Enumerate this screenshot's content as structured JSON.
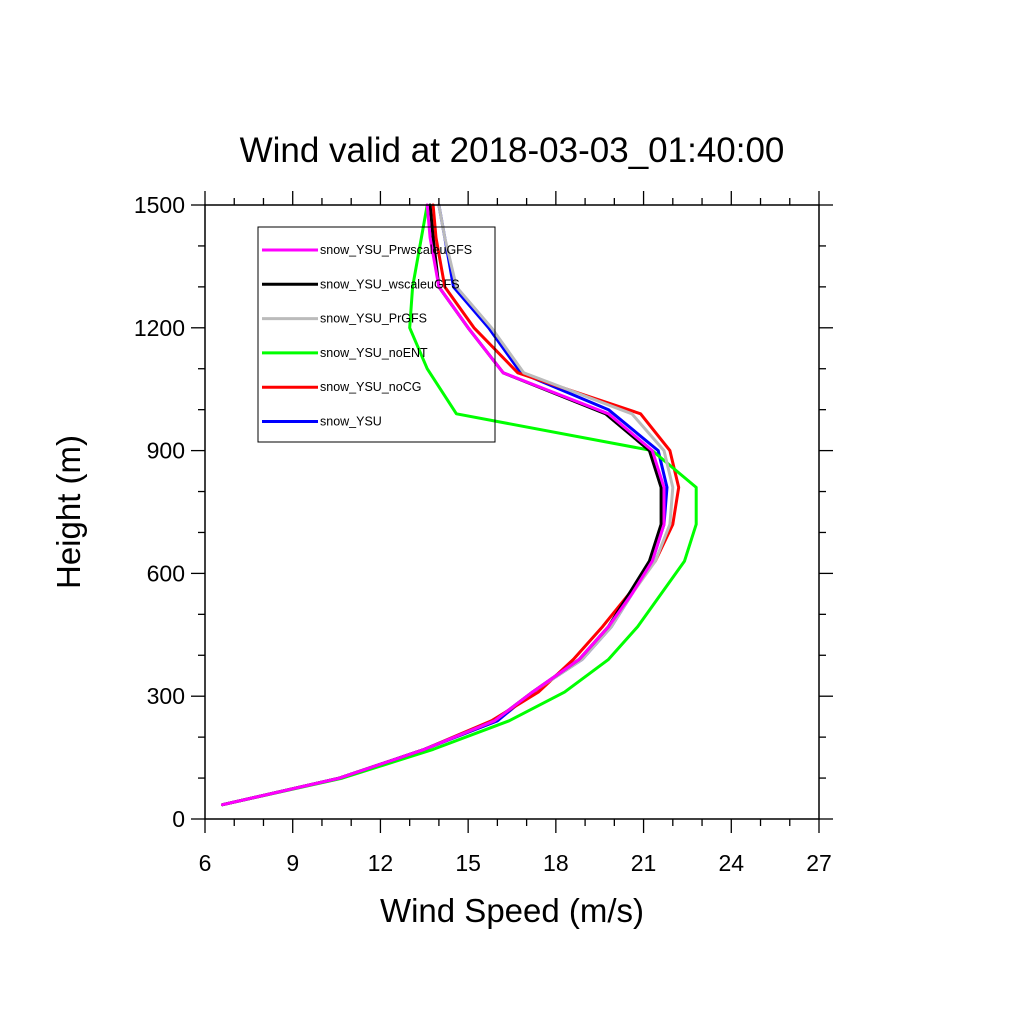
{
  "chart_data": {
    "type": "line",
    "title": "Wind valid at 2018-03-03_01:40:00",
    "xlabel": "Wind Speed (m/s)",
    "ylabel": "Height (m)",
    "xlim": [
      6,
      27
    ],
    "ylim": [
      0,
      1500
    ],
    "xticks": [
      "6",
      "9",
      "12",
      "15",
      "18",
      "21",
      "24",
      "27"
    ],
    "yticks": [
      "0",
      "300",
      "600",
      "900",
      "1200",
      "1500"
    ],
    "grid": false,
    "legend_position": "top-left",
    "series": [
      {
        "name": "snow_YSU",
        "color": "#0000ff",
        "points": [
          [
            6.6,
            35
          ],
          [
            10.6,
            100
          ],
          [
            13.5,
            170
          ],
          [
            16.0,
            240
          ],
          [
            17.2,
            310
          ],
          [
            18.9,
            390
          ],
          [
            19.9,
            470
          ],
          [
            20.6,
            550
          ],
          [
            21.3,
            630
          ],
          [
            21.7,
            720
          ],
          [
            21.8,
            810
          ],
          [
            21.5,
            900
          ],
          [
            19.8,
            1000
          ],
          [
            16.8,
            1090
          ],
          [
            15.7,
            1200
          ],
          [
            14.5,
            1300
          ],
          [
            14.2,
            1420
          ],
          [
            14.0,
            1500
          ]
        ]
      },
      {
        "name": "snow_YSU_noCG",
        "color": "#ff0000",
        "points": [
          [
            6.6,
            35
          ],
          [
            10.6,
            100
          ],
          [
            13.5,
            170
          ],
          [
            15.8,
            240
          ],
          [
            17.4,
            310
          ],
          [
            18.6,
            390
          ],
          [
            19.6,
            470
          ],
          [
            20.5,
            550
          ],
          [
            21.4,
            630
          ],
          [
            22.0,
            720
          ],
          [
            22.2,
            810
          ],
          [
            21.9,
            900
          ],
          [
            20.9,
            990
          ],
          [
            16.7,
            1090
          ],
          [
            15.2,
            1200
          ],
          [
            14.2,
            1300
          ],
          [
            13.9,
            1420
          ],
          [
            13.8,
            1500
          ]
        ]
      },
      {
        "name": "snow_YSU_noENT",
        "color": "#00ff00",
        "points": [
          [
            6.6,
            35
          ],
          [
            10.7,
            100
          ],
          [
            13.8,
            170
          ],
          [
            16.4,
            240
          ],
          [
            18.3,
            310
          ],
          [
            19.8,
            390
          ],
          [
            20.8,
            470
          ],
          [
            21.6,
            550
          ],
          [
            22.4,
            630
          ],
          [
            22.8,
            720
          ],
          [
            22.8,
            810
          ],
          [
            21.3,
            900
          ],
          [
            14.6,
            990
          ],
          [
            13.6,
            1100
          ],
          [
            13.0,
            1200
          ],
          [
            13.1,
            1300
          ],
          [
            13.4,
            1420
          ],
          [
            13.6,
            1500
          ]
        ]
      },
      {
        "name": "snow_YSU_PrGFS",
        "color": "#bbbbbb",
        "points": [
          [
            6.6,
            35
          ],
          [
            10.6,
            100
          ],
          [
            13.5,
            170
          ],
          [
            15.9,
            240
          ],
          [
            17.2,
            310
          ],
          [
            18.9,
            390
          ],
          [
            19.9,
            470
          ],
          [
            20.6,
            550
          ],
          [
            21.4,
            630
          ],
          [
            21.9,
            720
          ],
          [
            22.0,
            810
          ],
          [
            21.7,
            900
          ],
          [
            20.6,
            990
          ],
          [
            16.9,
            1090
          ],
          [
            15.8,
            1200
          ],
          [
            14.6,
            1300
          ],
          [
            14.2,
            1420
          ],
          [
            14.0,
            1500
          ]
        ]
      },
      {
        "name": "snow_YSU_wscaleuGFS",
        "color": "#000000",
        "points": [
          [
            6.6,
            35
          ],
          [
            10.6,
            100
          ],
          [
            13.5,
            170
          ],
          [
            15.9,
            240
          ],
          [
            17.2,
            310
          ],
          [
            18.8,
            390
          ],
          [
            19.8,
            470
          ],
          [
            20.5,
            550
          ],
          [
            21.2,
            630
          ],
          [
            21.6,
            720
          ],
          [
            21.6,
            810
          ],
          [
            21.2,
            900
          ],
          [
            19.7,
            990
          ],
          [
            16.2,
            1090
          ],
          [
            15.0,
            1200
          ],
          [
            14.0,
            1300
          ],
          [
            13.8,
            1420
          ],
          [
            13.7,
            1500
          ]
        ]
      },
      {
        "name": "snow_YSU_PrwscaleuGFS",
        "color": "#ff00ff",
        "points": [
          [
            6.6,
            35
          ],
          [
            10.6,
            100
          ],
          [
            13.5,
            170
          ],
          [
            15.9,
            240
          ],
          [
            17.2,
            310
          ],
          [
            18.8,
            390
          ],
          [
            19.8,
            470
          ],
          [
            20.6,
            550
          ],
          [
            21.3,
            630
          ],
          [
            21.7,
            720
          ],
          [
            21.7,
            810
          ],
          [
            21.3,
            900
          ],
          [
            19.8,
            990
          ],
          [
            16.2,
            1090
          ],
          [
            15.0,
            1200
          ],
          [
            14.0,
            1300
          ],
          [
            13.7,
            1420
          ],
          [
            13.6,
            1500
          ]
        ]
      }
    ],
    "legend_order": [
      "snow_YSU_PrwscaleuGFS",
      "snow_YSU_wscaleuGFS",
      "snow_YSU_PrGFS",
      "snow_YSU_noENT",
      "snow_YSU_noCG",
      "snow_YSU"
    ]
  }
}
